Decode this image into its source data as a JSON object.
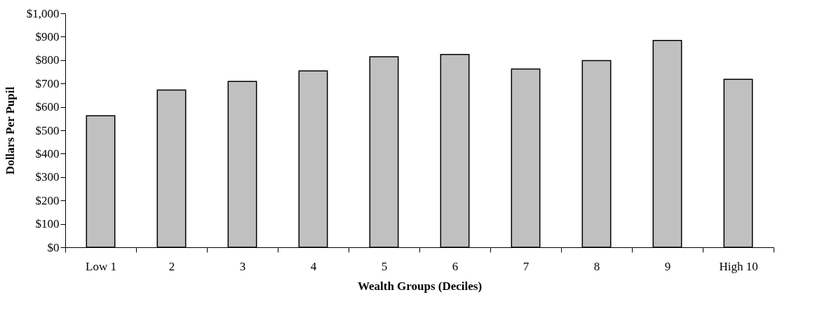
{
  "chart_data": {
    "type": "bar",
    "xlabel": "Wealth Groups (Deciles)",
    "ylabel": "Dollars Per Pupil",
    "categories": [
      "Low 1",
      "2",
      "3",
      "4",
      "5",
      "6",
      "7",
      "8",
      "9",
      "High 10"
    ],
    "values": [
      562,
      672,
      709,
      754,
      814,
      824,
      762,
      798,
      884,
      718
    ],
    "color": "#c0c0c0",
    "ylim": [
      0,
      1000
    ],
    "yticks": [
      {
        "value": 0,
        "label": "$0"
      },
      {
        "value": 100,
        "label": "$100"
      },
      {
        "value": 200,
        "label": "$200"
      },
      {
        "value": 300,
        "label": "$300"
      },
      {
        "value": 400,
        "label": "$400"
      },
      {
        "value": 500,
        "label": "$500"
      },
      {
        "value": 600,
        "label": "$600"
      },
      {
        "value": 700,
        "label": "$700"
      },
      {
        "value": 800,
        "label": "$800"
      },
      {
        "value": 900,
        "label": "$900"
      },
      {
        "value": 1000,
        "label": "$1,000"
      }
    ],
    "grid": false
  }
}
